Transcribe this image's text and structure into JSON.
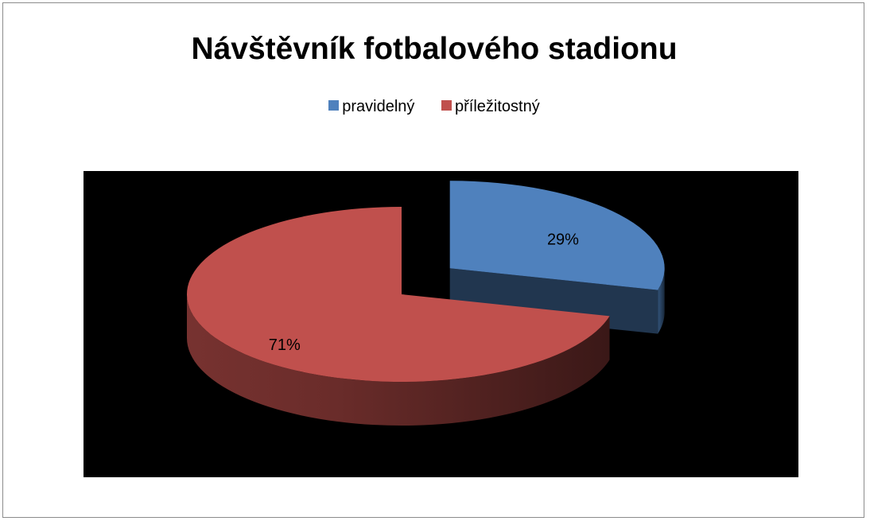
{
  "chart_data": {
    "type": "pie",
    "title": "Návštěvník fotbalového stadionu",
    "categories": [
      "pravidelný",
      "příležitostný"
    ],
    "values": [
      29,
      71
    ],
    "data_labels": [
      "29%",
      "71%"
    ],
    "colors": [
      "#4f81bd",
      "#c0504d"
    ],
    "legend_position": "top",
    "plot_background": "#000000",
    "style": "3d-exploded"
  }
}
